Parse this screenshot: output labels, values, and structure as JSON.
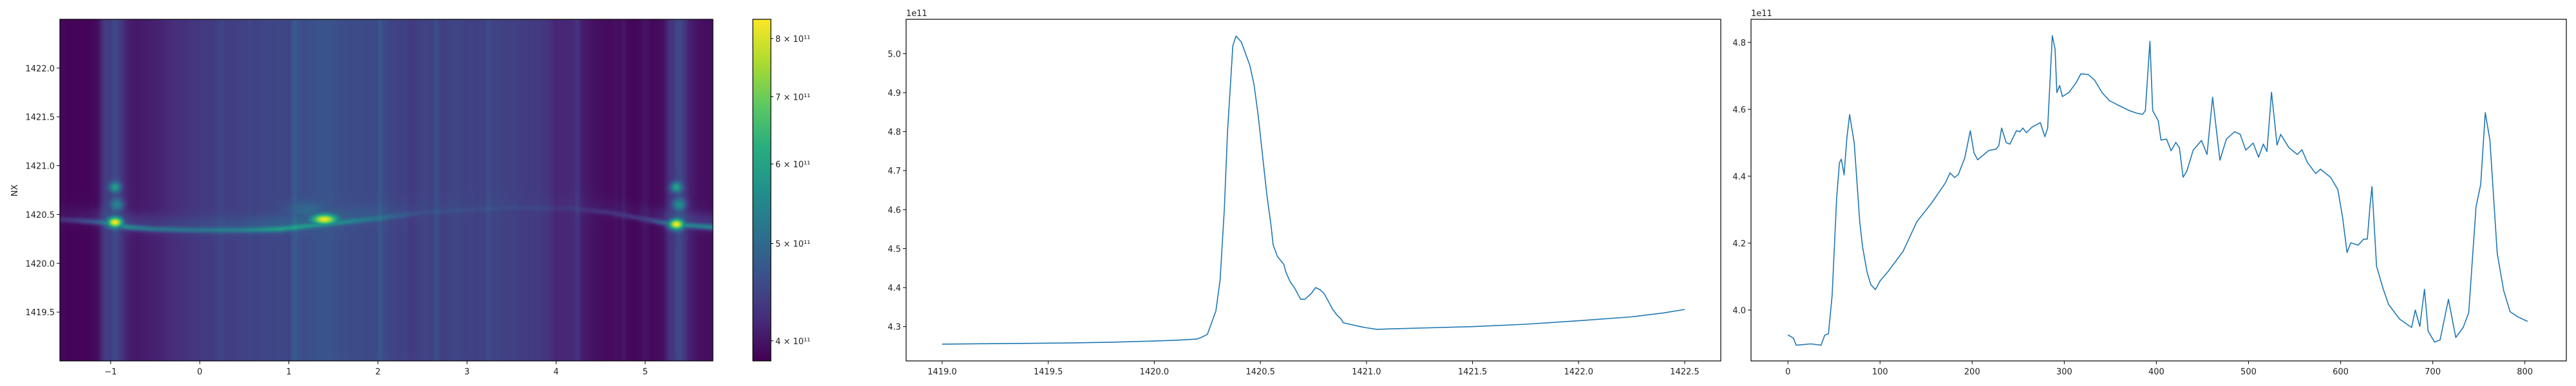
{
  "chart_data": [
    {
      "type": "heatmap",
      "title": "",
      "xlabel": "",
      "ylabel": "NX",
      "xlim": [
        -1.57,
        5.76
      ],
      "ylim": [
        1419.0,
        1422.5
      ],
      "x_ticks": [
        -1,
        0,
        1,
        2,
        3,
        4,
        5
      ],
      "x_tick_labels": [
        "−1",
        "0",
        "1",
        "2",
        "3",
        "4",
        "5"
      ],
      "y_ticks": [
        1419.5,
        1420.0,
        1420.5,
        1421.0,
        1421.5,
        1422.0
      ],
      "y_tick_labels": [
        "1419.5",
        "1420.0",
        "1420.5",
        "1421.0",
        "1421.5",
        "1422.0"
      ],
      "colormap": "viridis",
      "value_unit": "1e11",
      "background_profile": "column intensity follows the third panel series",
      "ridge": [
        [
          -1.57,
          1420.45,
          0.3
        ],
        [
          -1.1,
          1420.42,
          0.8
        ],
        [
          -0.8,
          1420.37,
          1.2
        ],
        [
          -0.5,
          1420.35,
          0.9
        ],
        [
          0,
          1420.34,
          0.7
        ],
        [
          0.5,
          1420.34,
          0.8
        ],
        [
          0.9,
          1420.35,
          1.2
        ],
        [
          1.2,
          1420.38,
          1.0
        ],
        [
          1.6,
          1420.42,
          0.8
        ],
        [
          2.0,
          1420.46,
          0.5
        ],
        [
          2.5,
          1420.52,
          0.15
        ],
        [
          3.5,
          1420.57,
          0.1
        ],
        [
          4.2,
          1420.56,
          0.15
        ],
        [
          4.6,
          1420.52,
          0.3
        ],
        [
          5.0,
          1420.45,
          0.4
        ],
        [
          5.3,
          1420.4,
          1.0
        ],
        [
          5.76,
          1420.37,
          1.3
        ]
      ],
      "peaks": [
        {
          "x": -0.95,
          "y": 1420.42,
          "value": 8.3
        },
        {
          "x": 1.4,
          "y": 1420.45,
          "value": 8.2
        },
        {
          "x": 5.35,
          "y": 1420.4,
          "value": 8.3
        },
        {
          "x": -0.95,
          "y": 1420.78,
          "value": 5.9
        },
        {
          "x": -0.93,
          "y": 1420.6,
          "value": 5.4
        },
        {
          "x": 5.35,
          "y": 1420.78,
          "value": 6.0
        },
        {
          "x": 5.38,
          "y": 1420.6,
          "value": 5.6
        },
        {
          "x": 1.2,
          "y": 1420.55,
          "value": 5.0
        }
      ],
      "colorbar": {
        "scale": "log",
        "range": [
          382000000000.0,
          836000000000.0
        ],
        "ticks": [
          400000000000.0,
          500000000000.0,
          600000000000.0,
          700000000000.0,
          800000000000.0
        ],
        "tick_labels": [
          "4 × 10¹¹",
          "5 × 10¹¹",
          "6 × 10¹¹",
          "7 × 10¹¹",
          "8 × 10¹¹"
        ]
      }
    },
    {
      "type": "line",
      "title": "",
      "xlabel": "",
      "ylabel": "",
      "offset_text": "1e11",
      "color": "#1f77b4",
      "xlim": [
        1418.83,
        1422.67
      ],
      "ylim": [
        4.212,
        5.088
      ],
      "x_ticks": [
        1419.0,
        1419.5,
        1420.0,
        1420.5,
        1421.0,
        1421.5,
        1422.0,
        1422.5
      ],
      "x_tick_labels": [
        "1419.0",
        "1419.5",
        "1420.0",
        "1420.5",
        "1421.0",
        "1421.5",
        "1422.0",
        "1422.5"
      ],
      "y_ticks": [
        4.3,
        4.4,
        4.5,
        4.6,
        4.7,
        4.8,
        4.9,
        5.0
      ],
      "y_tick_labels": [
        "4.3",
        "4.4",
        "4.5",
        "4.6",
        "4.7",
        "4.8",
        "4.9",
        "5.0"
      ],
      "x": [
        1419.0,
        1419.2,
        1419.4,
        1419.6,
        1419.8,
        1420.0,
        1420.1,
        1420.2,
        1420.22,
        1420.25,
        1420.27,
        1420.29,
        1420.31,
        1420.33,
        1420.345,
        1420.36,
        1420.37,
        1420.385,
        1420.41,
        1420.43,
        1420.45,
        1420.47,
        1420.49,
        1420.51,
        1420.53,
        1420.55,
        1420.56,
        1420.58,
        1420.61,
        1420.62,
        1420.64,
        1420.66,
        1420.69,
        1420.71,
        1420.72,
        1420.74,
        1420.76,
        1420.78,
        1420.8,
        1420.82,
        1420.84,
        1420.86,
        1420.88,
        1420.89,
        1420.93,
        1420.97,
        1421.0,
        1421.05,
        1421.1,
        1421.3,
        1421.5,
        1421.75,
        1422.0,
        1422.25,
        1422.4,
        1422.5
      ],
      "y": [
        4.255,
        4.256,
        4.257,
        4.258,
        4.26,
        4.263,
        4.265,
        4.268,
        4.272,
        4.28,
        4.31,
        4.34,
        4.42,
        4.6,
        4.8,
        4.93,
        5.02,
        5.045,
        5.03,
        5.0,
        4.97,
        4.92,
        4.84,
        4.74,
        4.64,
        4.56,
        4.51,
        4.48,
        4.46,
        4.44,
        4.415,
        4.4,
        4.37,
        4.37,
        4.375,
        4.385,
        4.4,
        4.395,
        4.385,
        4.365,
        4.345,
        4.33,
        4.32,
        4.31,
        4.305,
        4.3,
        4.297,
        4.293,
        4.294,
        4.297,
        4.3,
        4.306,
        4.315,
        4.325,
        4.335,
        4.344
      ]
    },
    {
      "type": "line",
      "title": "",
      "xlabel": "",
      "ylabel": "",
      "offset_text": "1e11",
      "color": "#1f77b4",
      "xlim": [
        -40,
        845
      ],
      "ylim": [
        3.848,
        4.869
      ],
      "x_ticks": [
        0,
        100,
        200,
        300,
        400,
        500,
        600,
        700,
        800
      ],
      "x_tick_labels": [
        "0",
        "100",
        "200",
        "300",
        "400",
        "500",
        "600",
        "700",
        "800"
      ],
      "y_ticks": [
        4.0,
        4.2,
        4.4,
        4.6,
        4.8
      ],
      "y_tick_labels": [
        "4.0",
        "4.2",
        "4.4",
        "4.6",
        "4.8"
      ],
      "x": [
        0,
        6,
        9,
        25,
        36,
        40,
        44,
        48,
        53,
        56,
        58,
        61,
        64,
        67,
        72,
        78,
        81,
        86,
        90,
        95,
        100,
        109,
        125,
        140,
        156,
        171,
        176,
        181,
        185,
        192,
        198,
        202,
        206,
        218,
        226,
        229,
        232,
        237,
        241,
        248,
        252,
        255,
        259,
        265,
        274,
        279,
        282,
        287,
        290,
        292,
        295,
        298,
        305,
        313,
        318,
        326,
        333,
        341,
        349,
        358,
        370,
        379,
        385,
        388,
        393,
        396,
        402,
        405,
        411,
        416,
        421,
        425,
        429,
        433,
        440,
        449,
        455,
        461,
        469,
        476,
        485,
        491,
        497,
        505,
        511,
        516,
        520,
        525,
        531,
        535,
        544,
        553,
        558,
        564,
        573,
        578,
        589,
        597,
        602,
        607,
        611,
        619,
        625,
        629,
        632,
        634,
        639,
        646,
        652,
        664,
        677,
        681,
        686,
        691,
        695,
        702,
        708,
        717,
        725,
        733,
        739,
        747,
        752,
        757,
        762,
        770,
        777,
        784,
        792,
        803
      ],
      "y": [
        3.926,
        3.916,
        3.895,
        3.899,
        3.895,
        3.925,
        3.929,
        4.043,
        4.337,
        4.44,
        4.451,
        4.404,
        4.514,
        4.584,
        4.5,
        4.264,
        4.19,
        4.113,
        4.076,
        4.061,
        4.087,
        4.116,
        4.175,
        4.264,
        4.32,
        4.38,
        4.41,
        4.396,
        4.405,
        4.455,
        4.536,
        4.47,
        4.449,
        4.477,
        4.481,
        4.492,
        4.544,
        4.5,
        4.496,
        4.536,
        4.533,
        4.544,
        4.53,
        4.547,
        4.56,
        4.518,
        4.544,
        4.82,
        4.78,
        4.65,
        4.671,
        4.638,
        4.65,
        4.68,
        4.706,
        4.704,
        4.687,
        4.65,
        4.626,
        4.613,
        4.597,
        4.588,
        4.585,
        4.596,
        4.803,
        4.596,
        4.566,
        4.508,
        4.511,
        4.476,
        4.501,
        4.485,
        4.397,
        4.415,
        4.478,
        4.507,
        4.465,
        4.636,
        4.448,
        4.511,
        4.533,
        4.525,
        4.478,
        4.499,
        4.457,
        4.496,
        4.474,
        4.651,
        4.493,
        4.525,
        4.485,
        4.465,
        4.479,
        4.441,
        4.408,
        4.421,
        4.397,
        4.36,
        4.279,
        4.172,
        4.201,
        4.194,
        4.212,
        4.212,
        4.315,
        4.369,
        4.131,
        4.065,
        4.017,
        3.973,
        3.948,
        4.0,
        3.951,
        4.062,
        3.937,
        3.904,
        3.911,
        4.032,
        3.918,
        3.948,
        3.992,
        4.309,
        4.375,
        4.59,
        4.508,
        4.169,
        4.058,
        3.995,
        3.98,
        3.966
      ]
    }
  ]
}
